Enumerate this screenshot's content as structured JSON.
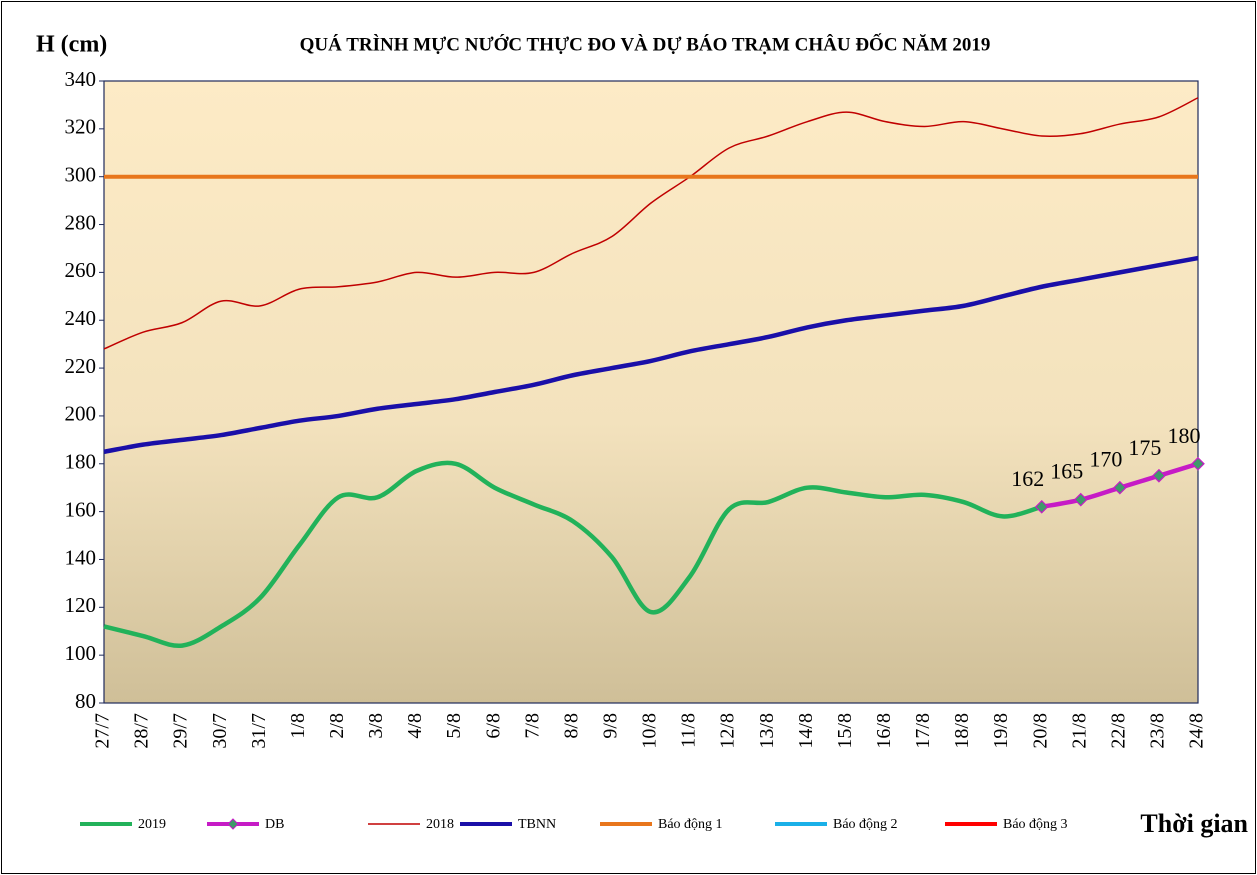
{
  "chart_data": {
    "type": "line",
    "title": "QUÁ TRÌNH MỰC NƯỚC THỰC ĐO VÀ DỰ BÁO TRẠM CHÂU ĐỐC NĂM  2019",
    "y_label": "H (cm)",
    "x_label": "Thời gian",
    "categories": [
      "27/7",
      "28/7",
      "29/7",
      "30/7",
      "31/7",
      "1/8",
      "2/8",
      "3/8",
      "4/8",
      "5/8",
      "6/8",
      "7/8",
      "8/8",
      "9/8",
      "10/8",
      "11/8",
      "12/8",
      "13/8",
      "14/8",
      "15/8",
      "16/8",
      "17/8",
      "18/8",
      "19/8",
      "20/8",
      "21/8",
      "22/8",
      "23/8",
      "24/8"
    ],
    "ylim": [
      80,
      340
    ],
    "yticks": [
      80,
      100,
      120,
      140,
      160,
      180,
      200,
      220,
      240,
      260,
      280,
      300,
      320,
      340
    ],
    "grid": false,
    "legend": "bottom",
    "series": [
      {
        "name": "2019",
        "color": "#22b25a",
        "values": [
          112,
          108,
          104,
          112,
          124,
          146,
          166,
          166,
          177,
          180,
          170,
          163,
          156,
          141,
          118,
          133,
          161,
          164,
          170,
          168,
          166,
          167,
          164,
          158,
          162,
          null,
          null,
          null,
          null
        ]
      },
      {
        "name": "DB",
        "color": "#c61bc6",
        "values": [
          null,
          null,
          null,
          null,
          null,
          null,
          null,
          null,
          null,
          null,
          null,
          null,
          null,
          null,
          null,
          null,
          null,
          null,
          null,
          null,
          null,
          null,
          null,
          null,
          162,
          165,
          170,
          175,
          180
        ]
      },
      {
        "name": "2018",
        "color": "#c00000",
        "values": [
          228,
          235,
          239,
          248,
          246,
          253,
          254,
          256,
          260,
          258,
          260,
          260,
          268,
          275,
          289,
          300,
          312,
          317,
          323,
          327,
          323,
          321,
          323,
          320,
          317,
          318,
          322,
          325,
          333
        ]
      },
      {
        "name": "TBNN",
        "color": "#1a0fa8",
        "values": [
          185,
          188,
          190,
          192,
          195,
          198,
          200,
          203,
          205,
          207,
          210,
          213,
          217,
          220,
          223,
          227,
          230,
          233,
          237,
          240,
          242,
          244,
          246,
          250,
          254,
          257,
          260,
          263,
          266
        ]
      },
      {
        "name": "Báo động 1",
        "color": "#e8761c",
        "values": [
          300,
          300,
          300,
          300,
          300,
          300,
          300,
          300,
          300,
          300,
          300,
          300,
          300,
          300,
          300,
          300,
          300,
          300,
          300,
          300,
          300,
          300,
          300,
          300,
          300,
          300,
          300,
          300,
          300
        ]
      },
      {
        "name": "Báo động 2",
        "color": "#1ab0e8",
        "values": [
          null,
          null,
          null,
          null,
          null,
          null,
          null,
          null,
          null,
          null,
          null,
          null,
          null,
          null,
          null,
          null,
          null,
          null,
          null,
          null,
          null,
          null,
          null,
          null,
          null,
          null,
          null,
          null,
          null
        ]
      },
      {
        "name": "Báo động 3",
        "color": "#ff0000",
        "values": [
          null,
          null,
          null,
          null,
          null,
          null,
          null,
          null,
          null,
          null,
          null,
          null,
          null,
          null,
          null,
          null,
          null,
          null,
          null,
          null,
          null,
          null,
          null,
          null,
          null,
          null,
          null,
          null,
          null
        ]
      }
    ]
  }
}
